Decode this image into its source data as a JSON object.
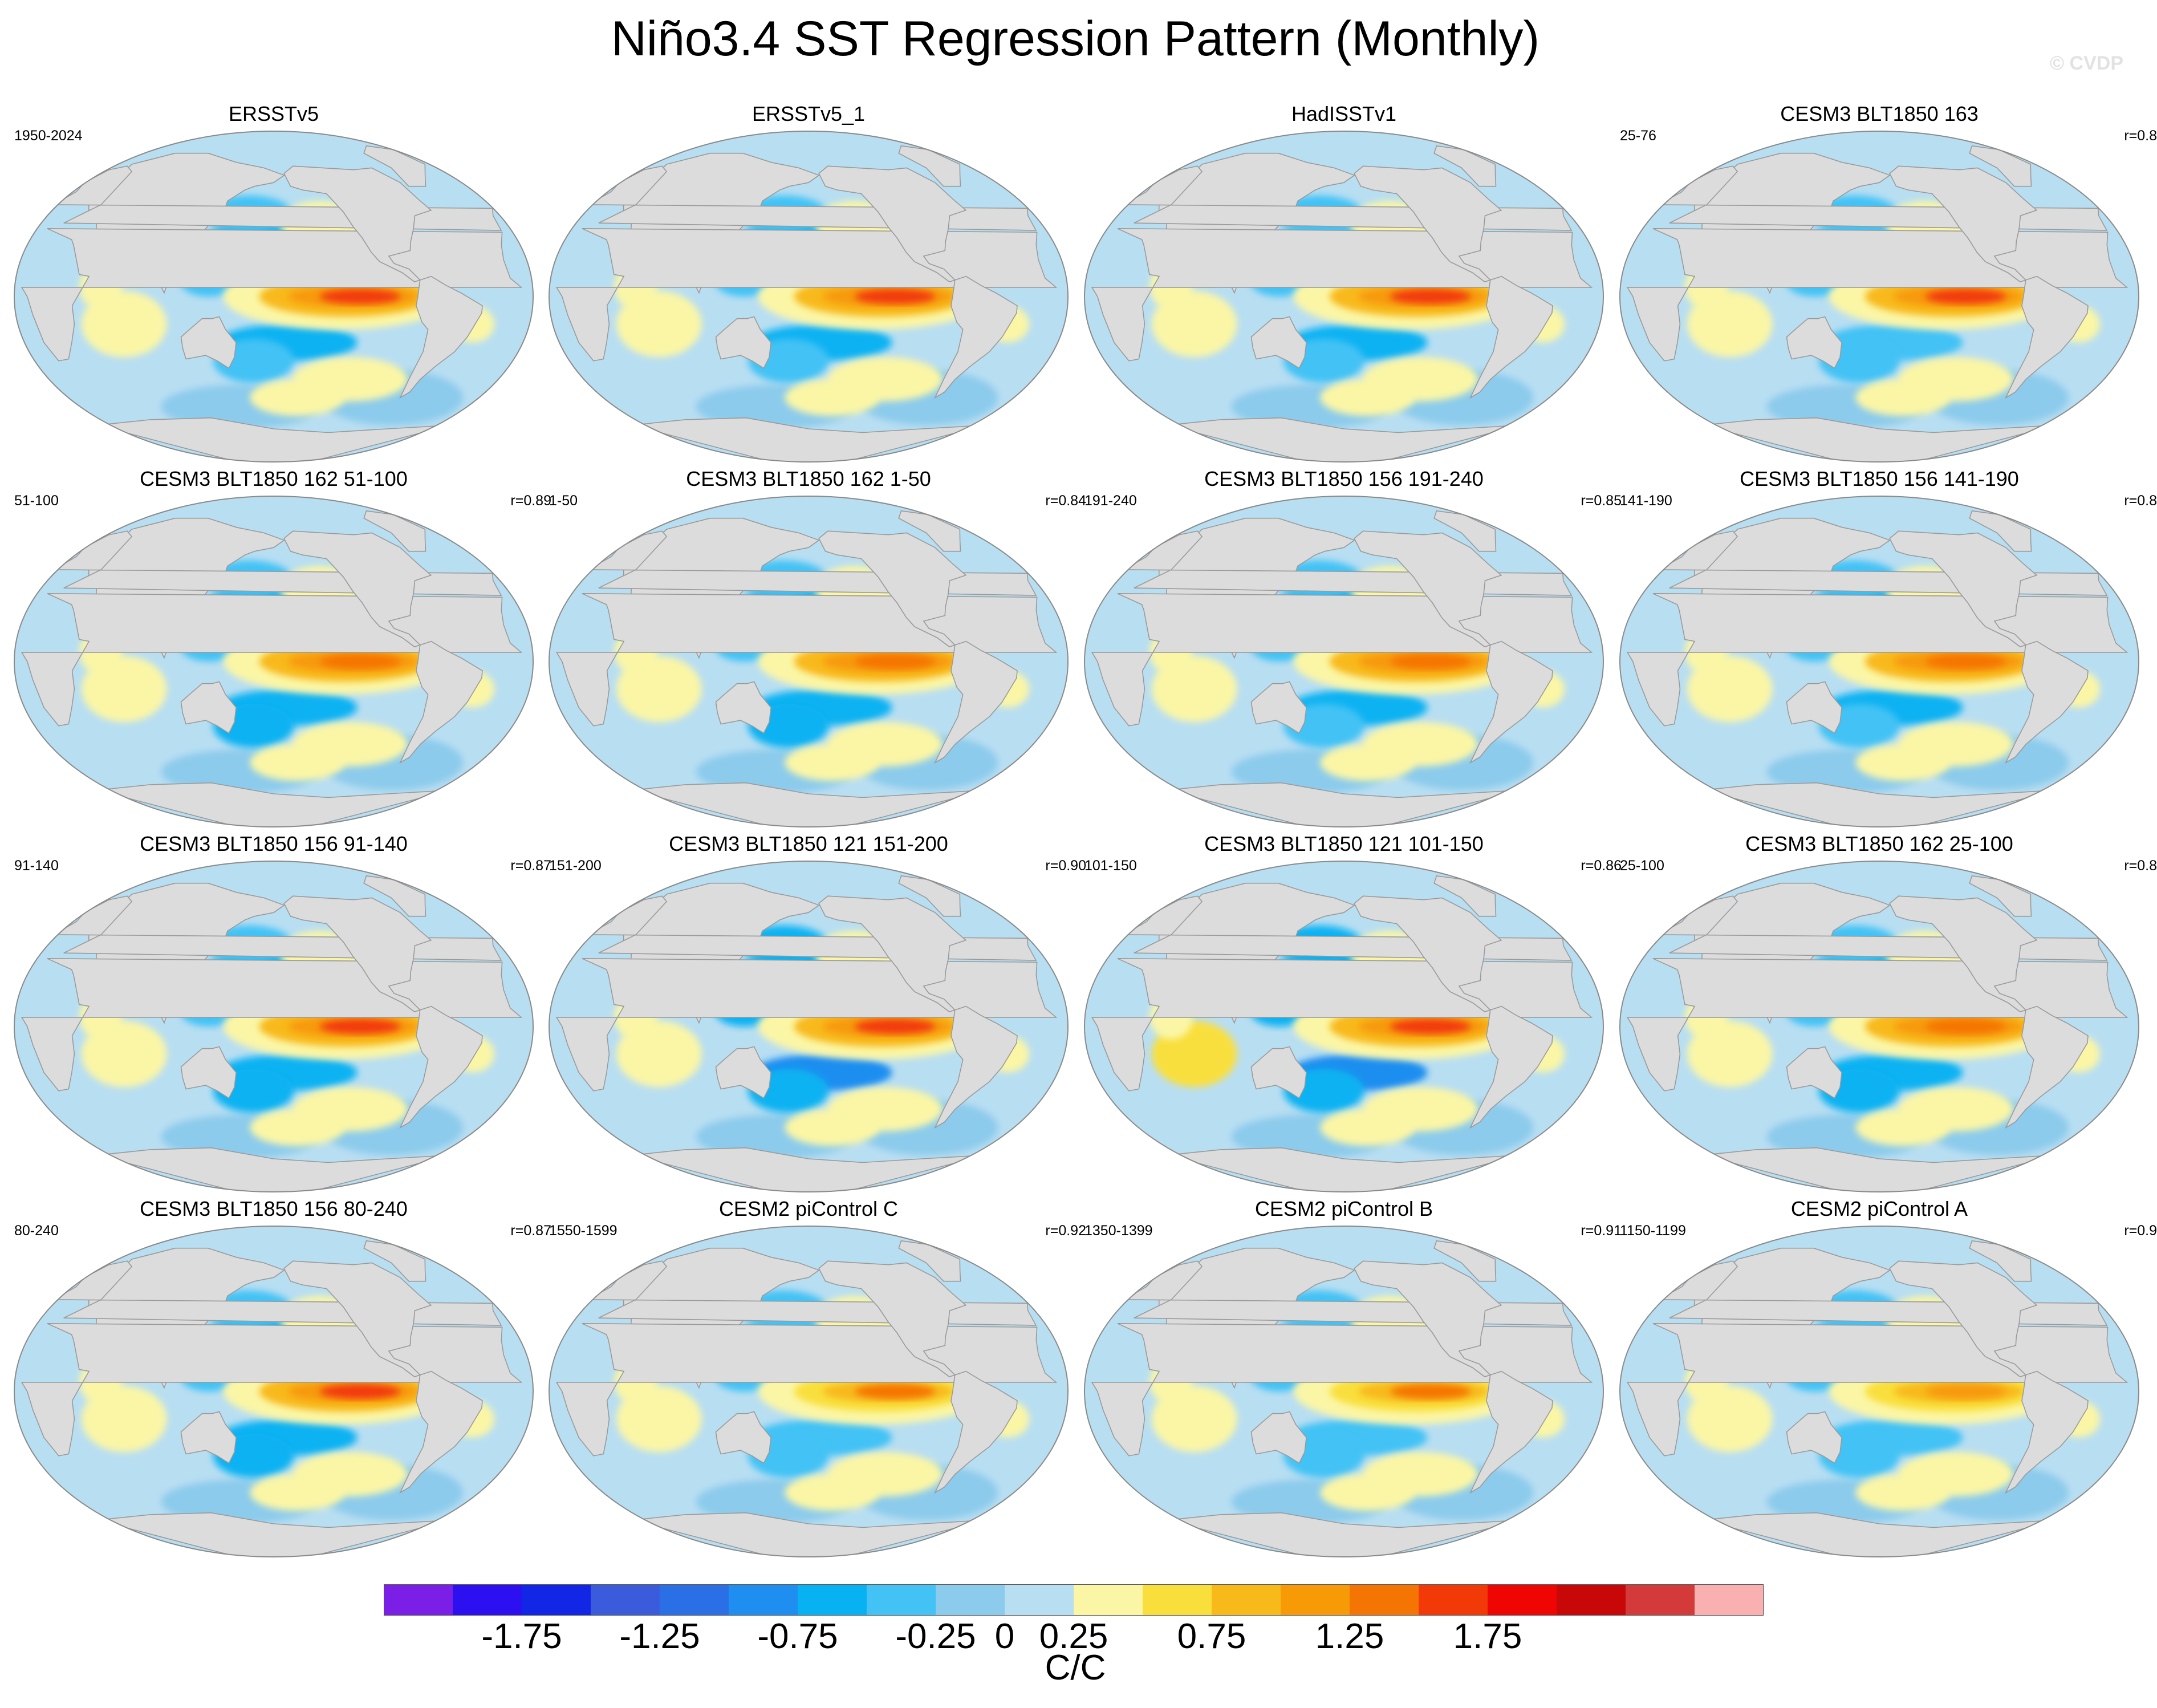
{
  "title": "Niño3.4 SST Regression Pattern (Monthly)",
  "watermark": "© CVDP",
  "colorbar": {
    "label": "C/C",
    "levels": [
      -2.0,
      -1.75,
      -1.5,
      -1.25,
      -1.0,
      -0.75,
      -0.5,
      -0.25,
      0,
      0.25,
      0.5,
      0.75,
      1.0,
      1.25,
      1.5,
      1.75,
      2.0
    ],
    "tick_labels": [
      "-1.75",
      "-1.25",
      "-0.75",
      "-0.25",
      "0",
      "0.25",
      "0.75",
      "1.25",
      "1.75"
    ],
    "tick_level_index": [
      1,
      3,
      5,
      7,
      8,
      9,
      11,
      13,
      15
    ],
    "colors": [
      "#7b1fe6",
      "#2c10f0",
      "#1226e6",
      "#3a5cdc",
      "#2a6fe6",
      "#1e8ef0",
      "#08b2f2",
      "#42c2f5",
      "#8ccbec",
      "#b8def2",
      "#fbf6a6",
      "#f9df3c",
      "#f8b91a",
      "#f79a08",
      "#f57504",
      "#f23a08",
      "#f00505",
      "#c80808",
      "#d43a3a",
      "#f9b0b0"
    ]
  },
  "colors": {
    "land": "#dcdcdc",
    "coast": "#9a9a9a",
    "frame": "#8a8a8a"
  },
  "chart_data": {
    "type": "heatmap",
    "variable": "Niño3.4 SST regression coefficient",
    "units": "C/C",
    "projection": "Robinson (global)",
    "panels": [
      {
        "title": "ERSSTv5",
        "period": "1950-2024",
        "corr": "",
        "peak": 1.6,
        "pacific_warm": 0.9,
        "subtropical_cold": -0.6,
        "indian_warm": 0.3
      },
      {
        "title": "ERSSTv5_1",
        "period": "",
        "corr": "",
        "peak": 1.6,
        "pacific_warm": 0.9,
        "subtropical_cold": -0.6,
        "indian_warm": 0.3
      },
      {
        "title": "HadISSTv1",
        "period": "",
        "corr": "",
        "peak": 1.6,
        "pacific_warm": 0.9,
        "subtropical_cold": -0.55,
        "indian_warm": 0.3
      },
      {
        "title": "CESM3 BLT1850 163",
        "period": "25-76",
        "corr": "r=0.8",
        "peak": 1.6,
        "pacific_warm": 1.0,
        "subtropical_cold": -0.5,
        "indian_warm": 0.4
      },
      {
        "title": "CESM3 BLT1850 162 51-100",
        "period": "51-100",
        "corr": "r=0.89",
        "peak": 1.3,
        "pacific_warm": 0.9,
        "subtropical_cold": -0.7,
        "indian_warm": 0.4
      },
      {
        "title": "CESM3 BLT1850 162 1-50",
        "period": "1-50",
        "corr": "r=0.84",
        "peak": 1.3,
        "pacific_warm": 0.9,
        "subtropical_cold": -0.7,
        "indian_warm": 0.4
      },
      {
        "title": "CESM3 BLT1850 156 191-240",
        "period": "191-240",
        "corr": "r=0.85",
        "peak": 1.4,
        "pacific_warm": 0.9,
        "subtropical_cold": -0.6,
        "indian_warm": 0.4
      },
      {
        "title": "CESM3 BLT1850 156 141-190",
        "period": "141-190",
        "corr": "r=0.8",
        "peak": 1.4,
        "pacific_warm": 0.9,
        "subtropical_cold": -0.6,
        "indian_warm": 0.4
      },
      {
        "title": "CESM3 BLT1850 156 91-140",
        "period": "91-140",
        "corr": "r=0.87",
        "peak": 1.6,
        "pacific_warm": 0.9,
        "subtropical_cold": -0.7,
        "indian_warm": 0.4
      },
      {
        "title": "CESM3 BLT1850 121 151-200",
        "period": "151-200",
        "corr": "r=0.90",
        "peak": 1.6,
        "pacific_warm": 1.0,
        "subtropical_cold": -0.8,
        "indian_warm": 0.4
      },
      {
        "title": "CESM3 BLT1850 121 101-150",
        "period": "101-150",
        "corr": "r=0.86",
        "peak": 1.6,
        "pacific_warm": 1.0,
        "subtropical_cold": -0.8,
        "indian_warm": 0.5
      },
      {
        "title": "CESM3 BLT1850 162 25-100",
        "period": "25-100",
        "corr": "r=0.8",
        "peak": 1.4,
        "pacific_warm": 0.9,
        "subtropical_cold": -0.7,
        "indian_warm": 0.4
      },
      {
        "title": "CESM3 BLT1850 156 80-240",
        "period": "80-240",
        "corr": "r=0.87",
        "peak": 1.5,
        "pacific_warm": 0.9,
        "subtropical_cold": -0.7,
        "indian_warm": 0.4
      },
      {
        "title": "CESM2 piControl C",
        "period": "1550-1599",
        "corr": "r=0.92",
        "peak": 1.3,
        "pacific_warm": 0.8,
        "subtropical_cold": -0.5,
        "indian_warm": 0.3
      },
      {
        "title": "CESM2 piControl B",
        "period": "1350-1399",
        "corr": "r=0.91",
        "peak": 1.3,
        "pacific_warm": 0.8,
        "subtropical_cold": -0.5,
        "indian_warm": 0.3
      },
      {
        "title": "CESM2 piControl A",
        "period": "1150-1199",
        "corr": "r=0.9",
        "peak": 1.2,
        "pacific_warm": 0.8,
        "subtropical_cold": -0.5,
        "indian_warm": 0.3
      }
    ]
  }
}
